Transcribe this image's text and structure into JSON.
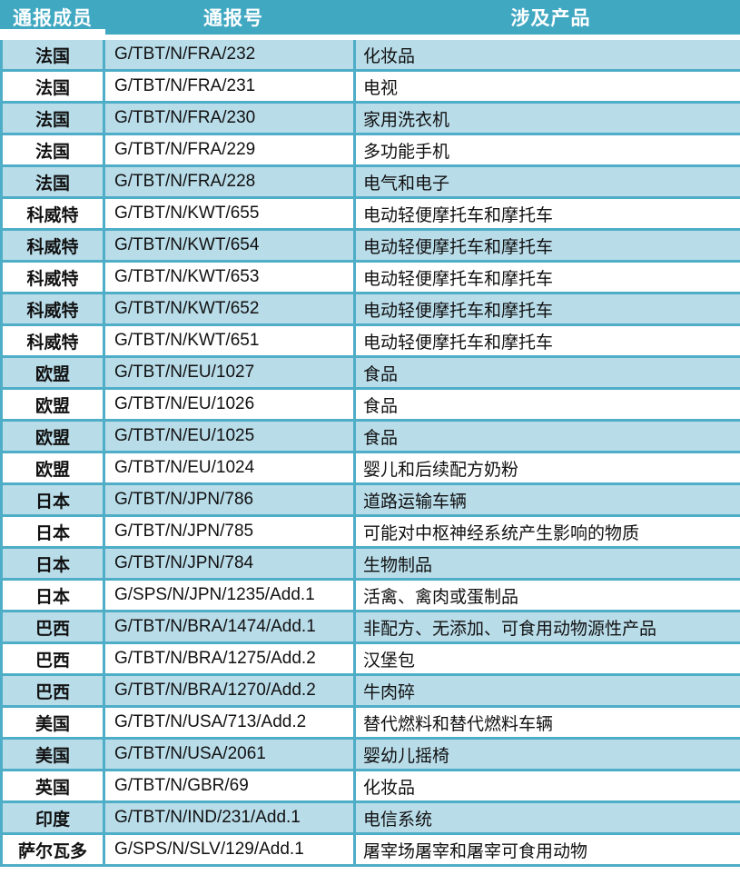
{
  "table": {
    "columns": [
      "通报成员",
      "通报号",
      "涉及产品"
    ],
    "rows": [
      [
        "法国",
        "G/TBT/N/FRA/232",
        "化妆品"
      ],
      [
        "法国",
        "G/TBT/N/FRA/231",
        "电视"
      ],
      [
        "法国",
        "G/TBT/N/FRA/230",
        "家用洗衣机"
      ],
      [
        "法国",
        "G/TBT/N/FRA/229",
        "多功能手机"
      ],
      [
        "法国",
        "G/TBT/N/FRA/228",
        "电气和电子"
      ],
      [
        "科威特",
        "G/TBT/N/KWT/655",
        "电动轻便摩托车和摩托车"
      ],
      [
        "科威特",
        "G/TBT/N/KWT/654",
        "电动轻便摩托车和摩托车"
      ],
      [
        "科威特",
        "G/TBT/N/KWT/653",
        "电动轻便摩托车和摩托车"
      ],
      [
        "科威特",
        "G/TBT/N/KWT/652",
        "电动轻便摩托车和摩托车"
      ],
      [
        "科威特",
        "G/TBT/N/KWT/651",
        "电动轻便摩托车和摩托车"
      ],
      [
        "欧盟",
        "G/TBT/N/EU/1027",
        "食品"
      ],
      [
        "欧盟",
        "G/TBT/N/EU/1026",
        "食品"
      ],
      [
        "欧盟",
        "G/TBT/N/EU/1025",
        "食品"
      ],
      [
        "欧盟",
        "G/TBT/N/EU/1024",
        "婴儿和后续配方奶粉"
      ],
      [
        "日本",
        "G/TBT/N/JPN/786",
        "道路运输车辆"
      ],
      [
        "日本",
        "G/TBT/N/JPN/785",
        "可能对中枢神经系统产生影响的物质"
      ],
      [
        "日本",
        "G/TBT/N/JPN/784",
        "生物制品"
      ],
      [
        "日本",
        "G/SPS/N/JPN/1235/Add.1",
        "活禽、禽肉或蛋制品"
      ],
      [
        "巴西",
        "G/TBT/N/BRA/1474/Add.1",
        "非配方、无添加、可食用动物源性产品"
      ],
      [
        "巴西",
        "G/TBT/N/BRA/1275/Add.2",
        "汉堡包"
      ],
      [
        "巴西",
        "G/TBT/N/BRA/1270/Add.2",
        "牛肉碎"
      ],
      [
        "美国",
        "G/TBT/N/USA/713/Add.2",
        "替代燃料和替代燃料车辆"
      ],
      [
        "美国",
        "G/TBT/N/USA/2061",
        "婴幼儿摇椅"
      ],
      [
        "英国",
        "G/TBT/N/GBR/69",
        "化妆品"
      ],
      [
        "印度",
        "G/TBT/N/IND/231/Add.1",
        "电信系统"
      ],
      [
        "萨尔瓦多",
        "G/SPS/N/SLV/129/Add.1",
        "屠宰场屠宰和屠宰可食用动物"
      ]
    ],
    "colors": {
      "header_bg": "#41A8C2",
      "band_bg": "#B9DCE9",
      "grid": "#4EADC7",
      "header_text": "#FFFFFF",
      "body_text": "#111111"
    }
  }
}
